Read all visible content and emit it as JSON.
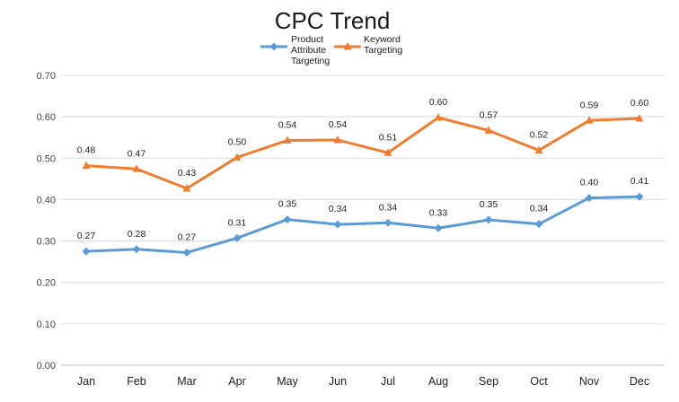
{
  "chart_data": {
    "type": "line",
    "title": "CPC Trend",
    "xlabel": "",
    "ylabel": "",
    "categories": [
      "Jan",
      "Feb",
      "Mar",
      "Apr",
      "May",
      "Jun",
      "Jul",
      "Aug",
      "Sep",
      "Oct",
      "Nov",
      "Dec"
    ],
    "ylim": [
      0,
      0.7
    ],
    "yticks": [
      "0.00",
      "0.10",
      "0.20",
      "0.30",
      "0.40",
      "0.50",
      "0.60",
      "0.70"
    ],
    "grid": true,
    "legend_position": "top",
    "series": [
      {
        "name": "Product Attribute Targeting",
        "color": "#5b9bd5",
        "marker": "diamond",
        "values": [
          0.275,
          0.28,
          0.272,
          0.307,
          0.352,
          0.34,
          0.344,
          0.331,
          0.351,
          0.341,
          0.404,
          0.407
        ],
        "labels": [
          "0.27",
          "0.28",
          "0.27",
          "0.31",
          "0.35",
          "0.34",
          "0.34",
          "0.33",
          "0.35",
          "0.34",
          "0.40",
          "0.41"
        ]
      },
      {
        "name": "Keyword Targeting",
        "color": "#ed7d31",
        "marker": "triangle",
        "values": [
          0.482,
          0.474,
          0.427,
          0.502,
          0.543,
          0.544,
          0.513,
          0.598,
          0.567,
          0.519,
          0.591,
          0.596
        ],
        "labels": [
          "0.48",
          "0.47",
          "0.43",
          "0.50",
          "0.54",
          "0.54",
          "0.51",
          "0.60",
          "0.57",
          "0.52",
          "0.59",
          "0.60"
        ]
      }
    ]
  }
}
